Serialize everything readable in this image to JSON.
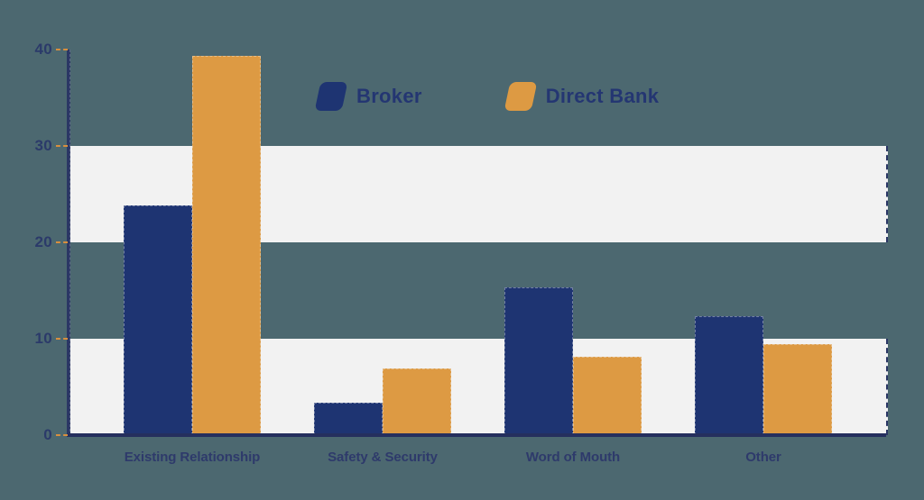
{
  "colors": {
    "background": "#4c6870",
    "band": "#f2f2f2",
    "axis": "#252f5e",
    "axis_vertical": "#2b3765",
    "tick_orange": "#d98f3e",
    "label_navy": "#2b3a6a",
    "series_broker": "#1e3472",
    "series_direct_bank": "#dd9a43"
  },
  "chart_data": {
    "type": "bar",
    "title": "",
    "xlabel": "",
    "ylabel": "",
    "categories": [
      "Existing Relationship",
      "Safety & Security",
      "Word of Mouth",
      "Other"
    ],
    "series": [
      {
        "name": "Broker",
        "color": "#1e3472",
        "values": [
          23.8,
          3.4,
          15.3,
          12.3
        ]
      },
      {
        "name": "Direct Bank",
        "color": "#dd9a43",
        "values": [
          39.3,
          6.9,
          8.1,
          9.4
        ]
      }
    ],
    "ylim": [
      0,
      40
    ],
    "yticks": [
      0,
      10,
      20,
      30,
      40
    ],
    "grid_bands": [
      [
        20,
        30
      ],
      [
        0,
        10
      ]
    ],
    "grid": "alternating horizontal bands",
    "legend_position": "top-center"
  }
}
